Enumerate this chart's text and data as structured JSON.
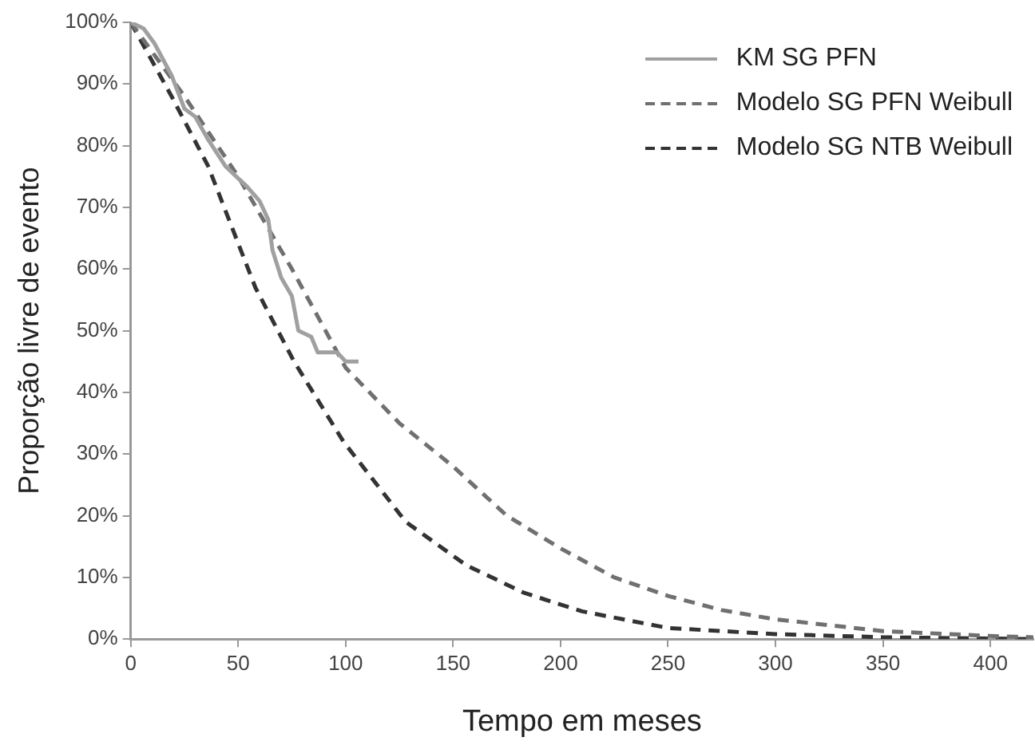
{
  "chart_data": {
    "type": "line",
    "xlabel": "Tempo em meses",
    "ylabel": "Proporção livre de evento",
    "xlim": [
      0,
      420
    ],
    "xticks": [
      0,
      50,
      100,
      150,
      200,
      250,
      300,
      350,
      400
    ],
    "ylim": [
      0,
      100
    ],
    "yticks": [
      {
        "value": 0,
        "label": "0%"
      },
      {
        "value": 10,
        "label": "10%"
      },
      {
        "value": 20,
        "label": "20%"
      },
      {
        "value": 30,
        "label": "30%"
      },
      {
        "value": 40,
        "label": "40%"
      },
      {
        "value": 50,
        "label": "50%"
      },
      {
        "value": 60,
        "label": "60%"
      },
      {
        "value": 70,
        "label": "70%"
      },
      {
        "value": 80,
        "label": "80%"
      },
      {
        "value": 90,
        "label": "90%"
      },
      {
        "value": 100,
        "label": "100%"
      }
    ],
    "grid": false,
    "legend": "top right",
    "marker": "none",
    "series": [
      {
        "name": "KM SG PFN",
        "color": "#a0a0a0",
        "line_style": "solid",
        "x": [
          0,
          6,
          11,
          19,
          25,
          30,
          36,
          44,
          50,
          54,
          60,
          64,
          66,
          70,
          75,
          78,
          84,
          87,
          96,
          100,
          106
        ],
        "values": [
          100,
          99,
          96.6,
          91.4,
          86,
          84.7,
          81,
          76.7,
          74.7,
          73.4,
          71,
          68,
          63,
          58.6,
          55.6,
          50,
          49,
          46.5,
          46.5,
          45,
          45
        ]
      },
      {
        "name": "Modelo SG PFN Weibull",
        "type": "line",
        "color": "#707070",
        "line_style": "dashed",
        "x": [
          0,
          25,
          50,
          75,
          100,
          125,
          150,
          175,
          200,
          225,
          250,
          275,
          300,
          350,
          400,
          420
        ],
        "values": [
          100,
          88,
          75,
          60,
          44,
          35,
          28,
          20,
          14.7,
          10,
          7,
          4.7,
          3.2,
          1.3,
          0.5,
          0.3
        ]
      },
      {
        "name": "Modelo SG NTB Weibull",
        "type": "line",
        "color": "#333333",
        "line_style": "dashed",
        "x": [
          0,
          19,
          36,
          58,
          76,
          99,
          128,
          156,
          183,
          210,
          250,
          300,
          350,
          420
        ],
        "values": [
          100,
          88,
          76.7,
          57,
          45,
          32,
          19,
          12,
          7.5,
          4.5,
          1.8,
          0.8,
          0.3,
          0
        ]
      }
    ]
  }
}
